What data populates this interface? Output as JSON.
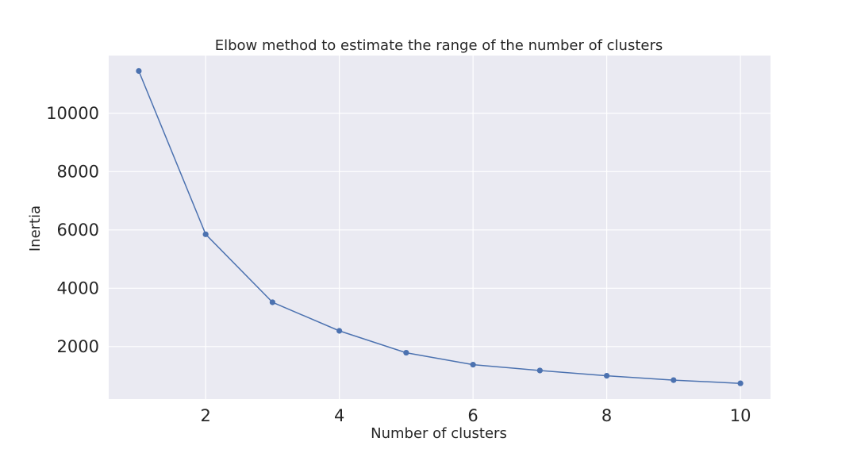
{
  "chart_data": {
    "type": "line",
    "title": "Elbow method to estimate the range of the number of clusters",
    "xlabel": "Number of clusters",
    "ylabel": "Inertia",
    "x": [
      1,
      2,
      3,
      4,
      5,
      6,
      7,
      8,
      9,
      10
    ],
    "series": [
      {
        "values": [
          11450,
          5850,
          3520,
          2540,
          1790,
          1380,
          1180,
          1000,
          850,
          740
        ]
      }
    ],
    "xlim": [
      0.55,
      10.45
    ],
    "ylim": [
      200,
      11980
    ],
    "xticks": [
      2,
      4,
      6,
      8,
      10
    ],
    "yticks": [
      2000,
      4000,
      6000,
      8000,
      10000
    ],
    "grid": true,
    "colors": {
      "background": "#eaeaf2",
      "grid": "#ffffff",
      "line": "#4c72b0"
    }
  }
}
